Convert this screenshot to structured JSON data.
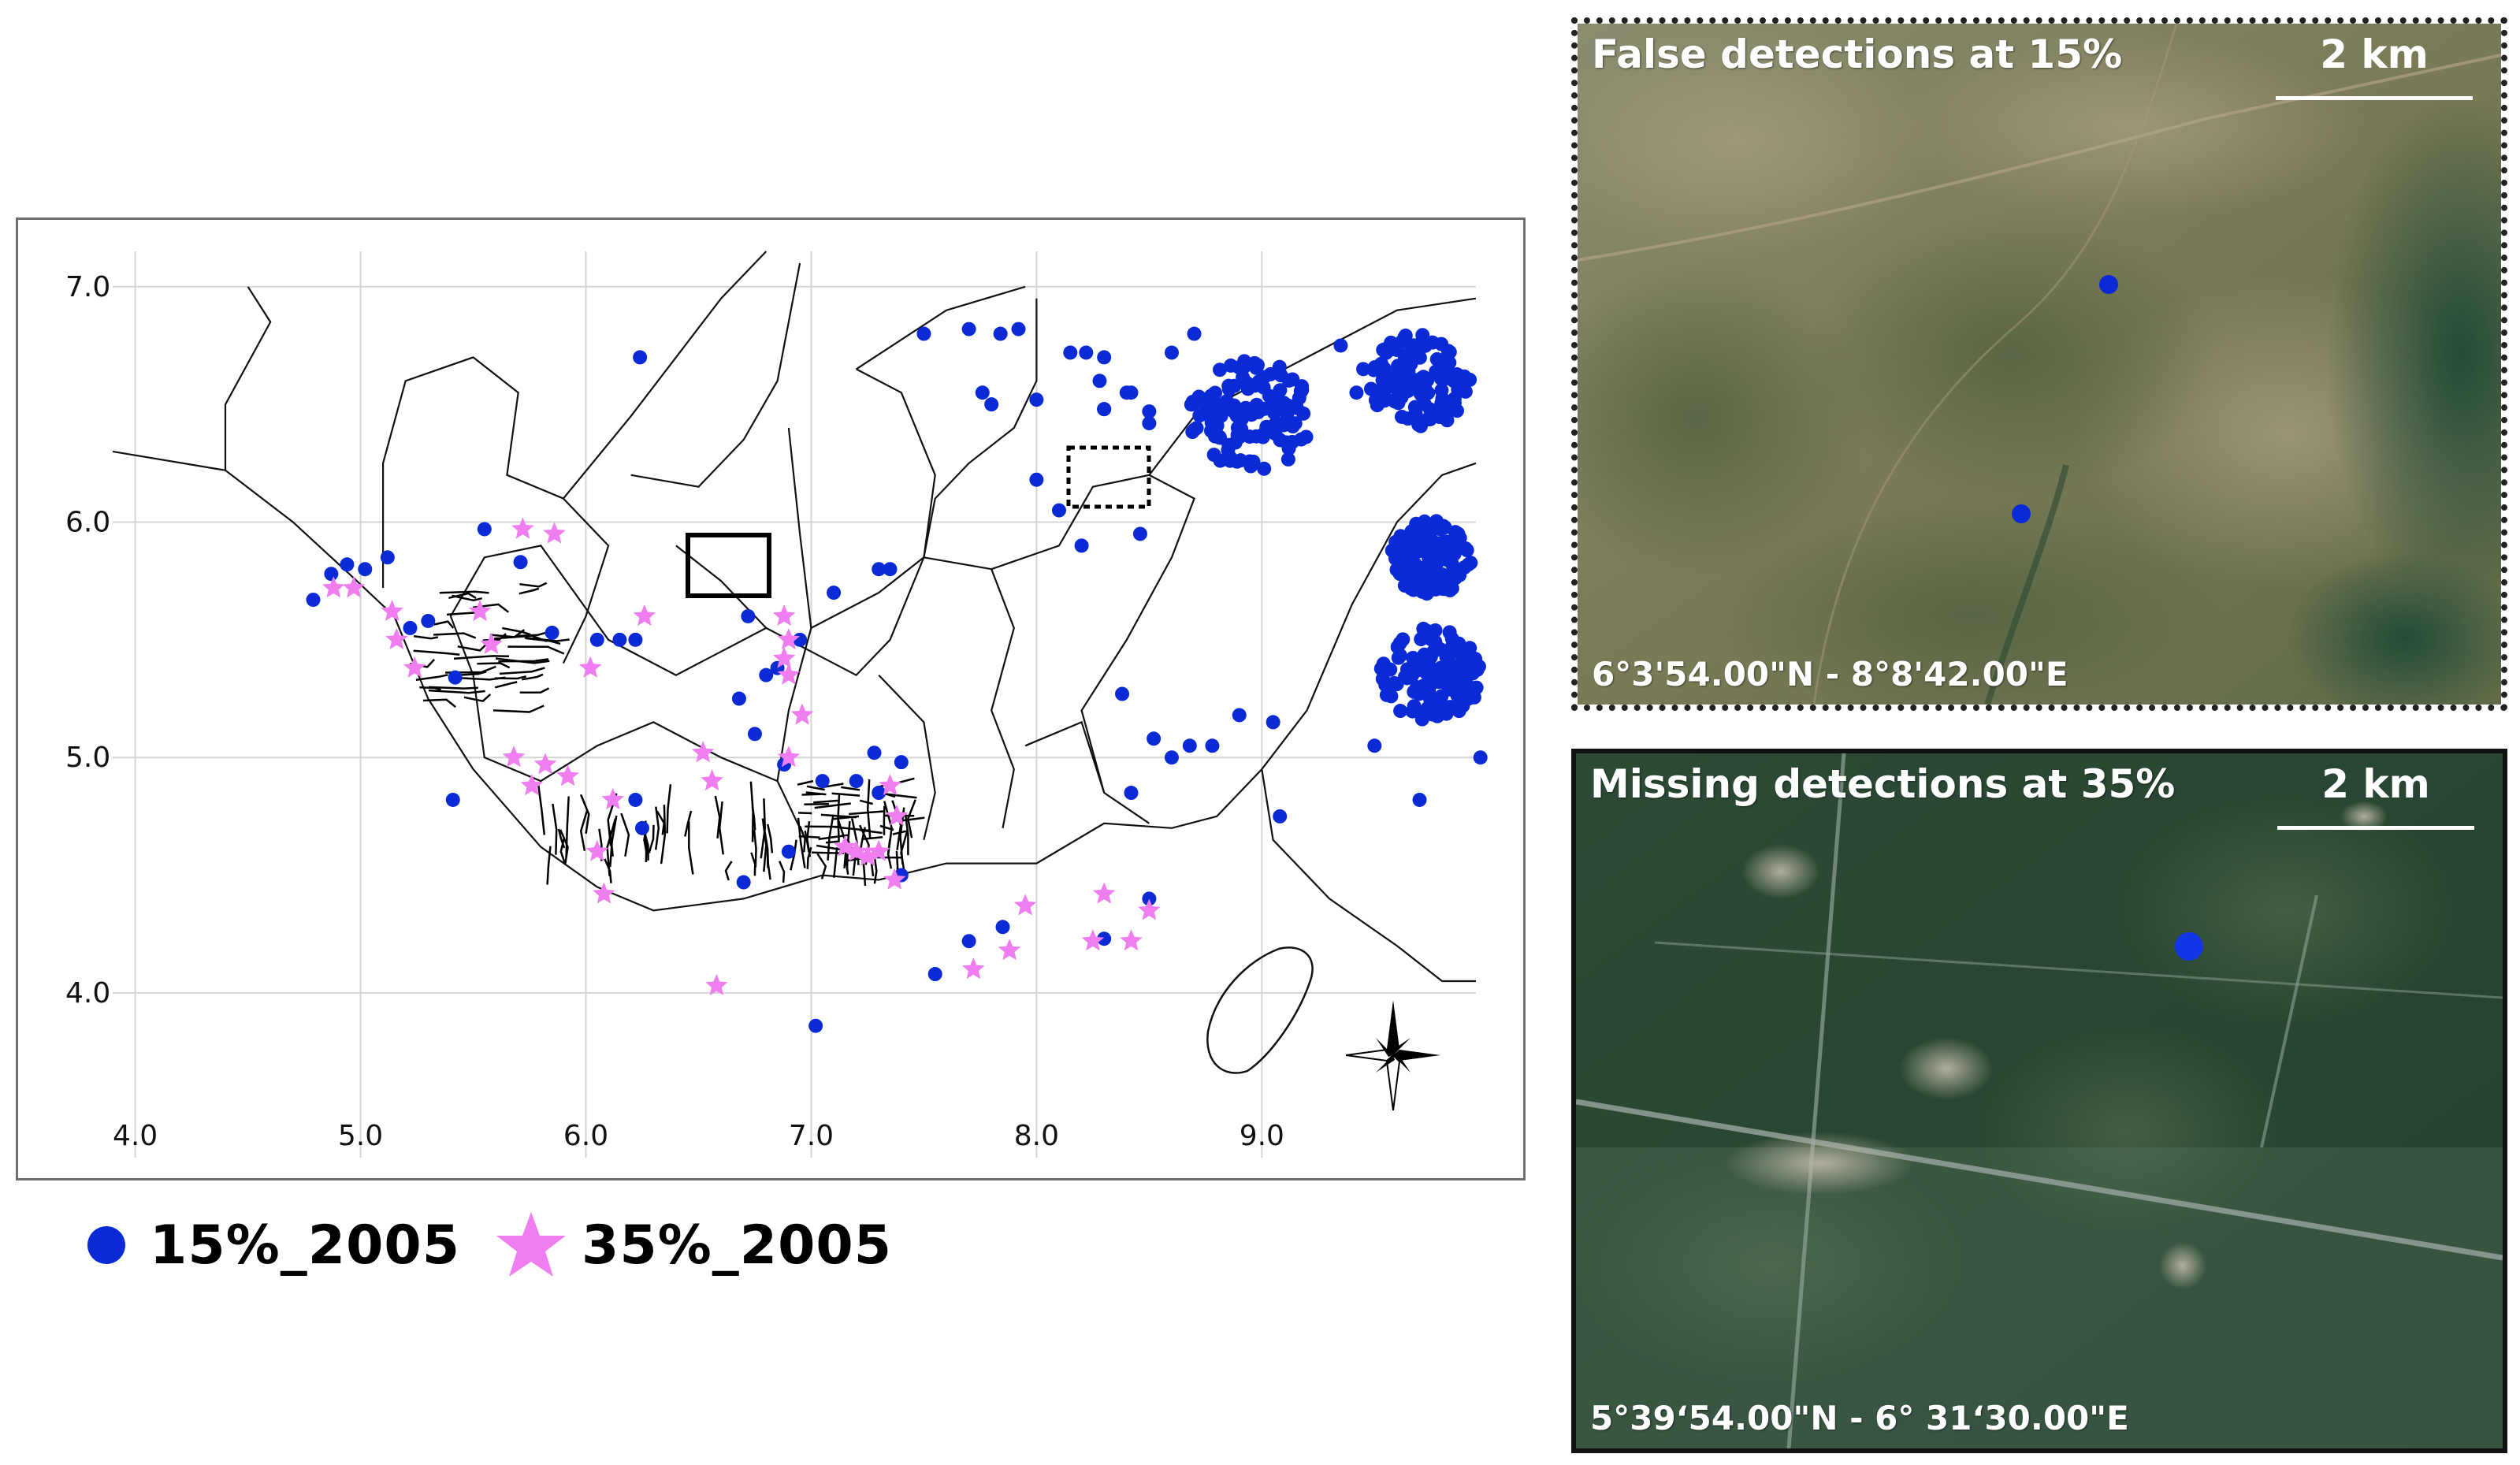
{
  "map": {
    "x_ticks": [
      "4.0",
      "5.0",
      "6.0",
      "7.0",
      "8.0",
      "9.0"
    ],
    "y_ticks": [
      "7.0",
      "6.0",
      "5.0",
      "4.0"
    ],
    "x_range": [
      3.9,
      9.95
    ],
    "y_range": [
      3.3,
      7.15
    ]
  },
  "legend": [
    {
      "label": "15%_2005",
      "color": "#0a2ad6",
      "symbol": "circle"
    },
    {
      "label": "35%_2005",
      "color": "#f07ef0",
      "symbol": "star"
    }
  ],
  "panels": {
    "false_detections": {
      "title": "False detections at 15%",
      "scale": "2 km",
      "coords": "6°3'54.00\"N -  8°8'42.00\"E"
    },
    "missing_detections": {
      "title": "Missing detections at 35%",
      "scale": "2 km",
      "coords": "5°39‘54.00\"N - 6° 31‘30.00\"E"
    }
  },
  "icons": {
    "north_arrow": "compass-star-icon"
  },
  "chart_data": {
    "type": "scatter",
    "x_ticks": [
      4.0,
      5.0,
      6.0,
      7.0,
      8.0,
      9.0
    ],
    "y_ticks": [
      4.0,
      5.0,
      6.0,
      7.0
    ],
    "series": [
      {
        "name": "15%_2005",
        "color": "#0a2ad6",
        "points": [
          [
            4.79,
            5.67
          ],
          [
            4.87,
            5.78
          ],
          [
            4.94,
            5.82
          ],
          [
            5.02,
            5.8
          ],
          [
            5.12,
            5.85
          ],
          [
            5.22,
            5.55
          ],
          [
            5.3,
            5.58
          ],
          [
            5.42,
            5.34
          ],
          [
            5.41,
            4.82
          ],
          [
            5.55,
            5.97
          ],
          [
            5.71,
            5.83
          ],
          [
            5.85,
            5.53
          ],
          [
            6.05,
            5.5
          ],
          [
            6.15,
            5.5
          ],
          [
            6.22,
            5.5
          ],
          [
            6.24,
            6.7
          ],
          [
            6.22,
            4.82
          ],
          [
            6.25,
            4.7
          ],
          [
            6.68,
            5.25
          ],
          [
            6.72,
            5.6
          ],
          [
            6.8,
            5.35
          ],
          [
            6.85,
            5.38
          ],
          [
            6.95,
            5.5
          ],
          [
            6.88,
            4.97
          ],
          [
            6.7,
            4.47
          ],
          [
            6.75,
            5.1
          ],
          [
            6.9,
            4.6
          ],
          [
            7.1,
            5.7
          ],
          [
            7.3,
            5.8
          ],
          [
            7.35,
            5.8
          ],
          [
            7.28,
            5.02
          ],
          [
            7.05,
            4.9
          ],
          [
            7.2,
            4.9
          ],
          [
            7.3,
            4.85
          ],
          [
            7.4,
            4.98
          ],
          [
            7.4,
            4.5
          ],
          [
            7.55,
            4.08
          ],
          [
            7.7,
            4.22
          ],
          [
            7.85,
            4.28
          ],
          [
            7.02,
            3.86
          ],
          [
            8.3,
            4.23
          ],
          [
            8.5,
            4.4
          ],
          [
            8.42,
            4.85
          ],
          [
            8.38,
            5.27
          ],
          [
            8.52,
            5.08
          ],
          [
            8.6,
            5.0
          ],
          [
            8.68,
            5.05
          ],
          [
            8.78,
            5.05
          ],
          [
            8.9,
            5.18
          ],
          [
            9.05,
            5.15
          ],
          [
            9.08,
            4.75
          ],
          [
            9.5,
            5.05
          ],
          [
            9.7,
            4.82
          ],
          [
            9.97,
            5.0
          ],
          [
            8.46,
            5.95
          ],
          [
            7.5,
            6.8
          ],
          [
            7.7,
            6.82
          ],
          [
            7.76,
            6.55
          ],
          [
            7.8,
            6.5
          ],
          [
            8.0,
            6.52
          ],
          [
            8.0,
            6.18
          ],
          [
            8.3,
            6.7
          ],
          [
            8.28,
            6.6
          ],
          [
            8.4,
            6.55
          ],
          [
            8.42,
            6.55
          ],
          [
            8.5,
            6.47
          ],
          [
            8.3,
            6.48
          ],
          [
            8.1,
            6.05
          ],
          [
            8.2,
            5.9
          ],
          [
            8.3,
            6.48
          ],
          [
            8.5,
            6.42
          ],
          [
            7.92,
            6.82
          ],
          [
            7.84,
            6.8
          ],
          [
            8.22,
            6.72
          ],
          [
            8.15,
            6.72
          ],
          [
            8.6,
            6.72
          ],
          [
            8.7,
            6.8
          ],
          [
            9.35,
            6.75
          ],
          [
            9.45,
            6.65
          ],
          [
            9.42,
            6.55
          ]
        ]
      },
      {
        "name": "35%_2005",
        "color": "#f07ef0",
        "points": [
          [
            4.88,
            5.72
          ],
          [
            4.97,
            5.72
          ],
          [
            5.14,
            5.62
          ],
          [
            5.16,
            5.5
          ],
          [
            5.24,
            5.38
          ],
          [
            5.53,
            5.62
          ],
          [
            5.58,
            5.48
          ],
          [
            5.72,
            5.97
          ],
          [
            5.86,
            5.95
          ],
          [
            5.68,
            5.0
          ],
          [
            5.76,
            4.88
          ],
          [
            5.82,
            4.97
          ],
          [
            5.92,
            4.92
          ],
          [
            6.05,
            4.6
          ],
          [
            6.08,
            4.42
          ],
          [
            6.12,
            4.82
          ],
          [
            6.02,
            5.38
          ],
          [
            6.26,
            5.6
          ],
          [
            6.52,
            5.02
          ],
          [
            6.56,
            4.9
          ],
          [
            6.88,
            5.6
          ],
          [
            6.9,
            5.5
          ],
          [
            6.88,
            5.42
          ],
          [
            6.9,
            5.35
          ],
          [
            6.96,
            5.18
          ],
          [
            6.9,
            5.0
          ],
          [
            6.58,
            4.03
          ],
          [
            7.2,
            4.6
          ],
          [
            7.25,
            4.58
          ],
          [
            7.3,
            4.6
          ],
          [
            7.15,
            4.62
          ],
          [
            7.35,
            4.88
          ],
          [
            7.38,
            4.75
          ],
          [
            7.37,
            4.48
          ],
          [
            7.72,
            4.1
          ],
          [
            7.88,
            4.18
          ],
          [
            7.95,
            4.37
          ],
          [
            8.25,
            4.22
          ],
          [
            8.3,
            4.42
          ],
          [
            8.42,
            4.22
          ],
          [
            8.5,
            4.35
          ]
        ]
      }
    ],
    "clusters_15pct": [
      {
        "x": 8.95,
        "y": 6.45,
        "spread": 0.3
      },
      {
        "x": 9.7,
        "y": 6.6,
        "spread": 0.25
      },
      {
        "x": 9.75,
        "y": 5.85,
        "spread": 0.2
      },
      {
        "x": 9.75,
        "y": 5.35,
        "spread": 0.25
      }
    ]
  }
}
